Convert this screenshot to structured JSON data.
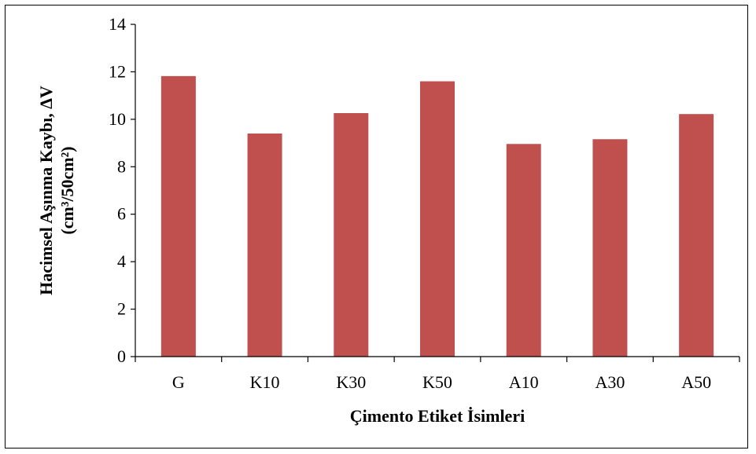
{
  "chart_data": {
    "type": "bar",
    "title": "",
    "xlabel": "Çimento Etiket İsimleri",
    "ylabel_line1": "Hacimsel Aşınma  Kaybı, ΔV",
    "ylabel_line2": "(cm³/50cm²)",
    "categories": [
      "G",
      "K10",
      "K30",
      "K50",
      "A10",
      "A30",
      "A50"
    ],
    "values": [
      11.82,
      9.4,
      10.26,
      11.6,
      8.96,
      9.16,
      10.22
    ],
    "ylim": [
      0,
      14
    ],
    "yticks": [
      0,
      2,
      4,
      6,
      8,
      10,
      12,
      14
    ],
    "grid": false,
    "legend": "none",
    "colors": {
      "bar": "#c0504d",
      "axis": "#000000"
    }
  }
}
